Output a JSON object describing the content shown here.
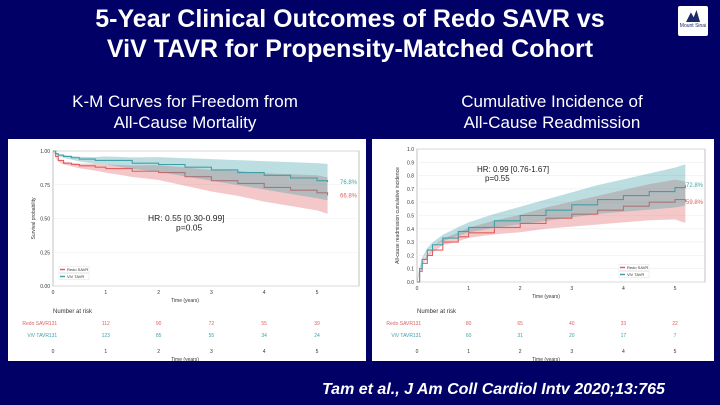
{
  "title_line1": "5-Year Clinical Outcomes of Redo SAVR vs",
  "title_line2": "ViV TAVR for Propensity-Matched Cohort",
  "logo_text": "Mount Sinai",
  "citation": "Tam et al., J Am Coll Cardiol Intv 2020;13:765",
  "chart_data": [
    {
      "type": "line",
      "subtitle_line1": "K-M Curves for Freedom from",
      "subtitle_line2": "All-Cause Mortality",
      "ylabel": "Survival probability",
      "xlabel": "Time (years)",
      "ylim": [
        0,
        1
      ],
      "xlim": [
        0,
        5
      ],
      "yticks": [
        "0.00",
        "0.25",
        "0.50",
        "0.75",
        "1.00"
      ],
      "xticks": [
        "0",
        "1",
        "2",
        "3",
        "4",
        "5"
      ],
      "series": [
        {
          "name": "Redo SAVR",
          "color": "#e06060",
          "x": [
            0,
            0.05,
            0.1,
            0.2,
            0.35,
            0.5,
            0.8,
            1,
            1.5,
            2,
            2.5,
            3,
            3.5,
            4,
            4.5,
            5,
            5.2
          ],
          "y": [
            1,
            0.96,
            0.93,
            0.91,
            0.9,
            0.89,
            0.88,
            0.87,
            0.85,
            0.84,
            0.81,
            0.78,
            0.76,
            0.73,
            0.71,
            0.69,
            0.67
          ],
          "end_label": "66.8%"
        },
        {
          "name": "ViV TAVR",
          "color": "#40a0a8",
          "x": [
            0,
            0.05,
            0.1,
            0.2,
            0.35,
            0.5,
            0.8,
            1,
            1.5,
            2,
            2.5,
            3,
            3.5,
            4,
            4.5,
            5,
            5.2
          ],
          "y": [
            1,
            0.98,
            0.97,
            0.96,
            0.95,
            0.94,
            0.93,
            0.93,
            0.91,
            0.9,
            0.88,
            0.86,
            0.84,
            0.82,
            0.8,
            0.78,
            0.77
          ],
          "end_label": "76.8%"
        }
      ],
      "annotation": {
        "line1": "HR: 0.55 [0.30-0.99]",
        "line2": "p=0.05"
      },
      "legend": "bottom-left",
      "risk_table": {
        "title": "Number at risk",
        "times": [
          "0",
          "1",
          "2",
          "3",
          "4",
          "5"
        ],
        "rows": [
          {
            "label": "Redo SAVR",
            "values": [
              "131",
              "112",
              "90",
              "72",
              "55",
              "39"
            ]
          },
          {
            "label": "ViV TAVR",
            "values": [
              "131",
              "123",
              "85",
              "55",
              "34",
              "24"
            ]
          }
        ]
      }
    },
    {
      "type": "line",
      "subtitle_line1": "Cumulative Incidence of",
      "subtitle_line2": "All-Cause Readmission",
      "ylabel": "All-cause readmission cumulative incidence",
      "xlabel": "Time (years)",
      "ylim": [
        0,
        1
      ],
      "xlim": [
        0,
        5
      ],
      "yticks": [
        "0.0",
        "0.1",
        "0.2",
        "0.3",
        "0.4",
        "0.5",
        "0.6",
        "0.7",
        "0.8",
        "0.9",
        "1.0"
      ],
      "xticks": [
        "0",
        "1",
        "2",
        "3",
        "4",
        "5"
      ],
      "series": [
        {
          "name": "Redo SAVR",
          "color": "#e06060",
          "x": [
            0,
            0.05,
            0.1,
            0.2,
            0.3,
            0.5,
            0.8,
            1,
            1.5,
            2,
            2.5,
            3,
            3.5,
            4,
            4.5,
            5,
            5.2
          ],
          "y": [
            0,
            0.08,
            0.14,
            0.2,
            0.24,
            0.3,
            0.34,
            0.37,
            0.41,
            0.44,
            0.48,
            0.51,
            0.54,
            0.57,
            0.6,
            0.62,
            0.6
          ],
          "end_label": "59.8%"
        },
        {
          "name": "ViV TAVR",
          "color": "#40a0a8",
          "x": [
            0,
            0.05,
            0.1,
            0.2,
            0.3,
            0.5,
            0.8,
            1,
            1.5,
            2,
            2.5,
            3,
            3.5,
            4,
            4.5,
            5,
            5.2
          ],
          "y": [
            0,
            0.1,
            0.17,
            0.24,
            0.28,
            0.33,
            0.38,
            0.41,
            0.46,
            0.5,
            0.54,
            0.58,
            0.62,
            0.65,
            0.68,
            0.71,
            0.73
          ],
          "end_label": "72.8%"
        }
      ],
      "annotation": {
        "line1": "HR: 0.99 [0.76-1.67]",
        "line2": "p=0.55"
      },
      "legend": "bottom-right",
      "risk_table": {
        "title": "Number at risk",
        "times": [
          "0",
          "1",
          "2",
          "3",
          "4",
          "5"
        ],
        "rows": [
          {
            "label": "Redo SAVR",
            "values": [
              "131",
              "80",
              "65",
              "40",
              "33",
              "22"
            ]
          },
          {
            "label": "ViV TAVR",
            "values": [
              "131",
              "60",
              "31",
              "20",
              "17",
              "7"
            ]
          }
        ]
      }
    }
  ]
}
